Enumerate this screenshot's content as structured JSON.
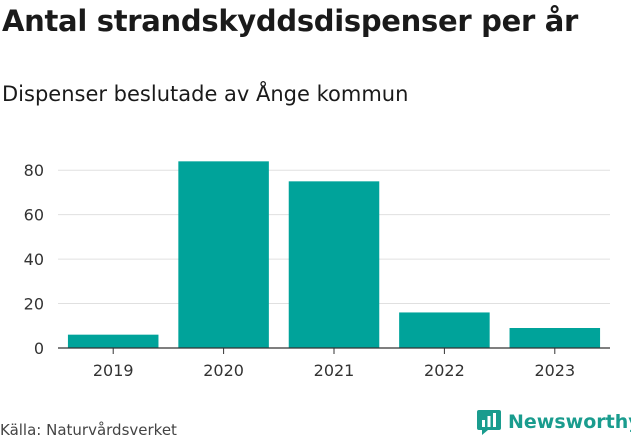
{
  "header": {
    "title": "Antal strandskyddsdispenser per år",
    "subtitle": "Dispenser beslutade av Ånge kommun"
  },
  "footer": {
    "source": "Källa: Naturvårdsverket",
    "brand": "Newsworthy",
    "brand_icon": "bar-chart-bubble-icon"
  },
  "colors": {
    "bar": "#00a39a",
    "grid": "#e0e0e0",
    "axis": "#333333",
    "brand": "#1a9c8e"
  },
  "chart_data": {
    "type": "bar",
    "categories": [
      "2019",
      "2020",
      "2021",
      "2022",
      "2023"
    ],
    "values": [
      6,
      84,
      75,
      16,
      9
    ],
    "yticks": [
      0,
      20,
      40,
      60,
      80
    ],
    "ylim": [
      0,
      90
    ],
    "grid": true,
    "legend": "none"
  }
}
